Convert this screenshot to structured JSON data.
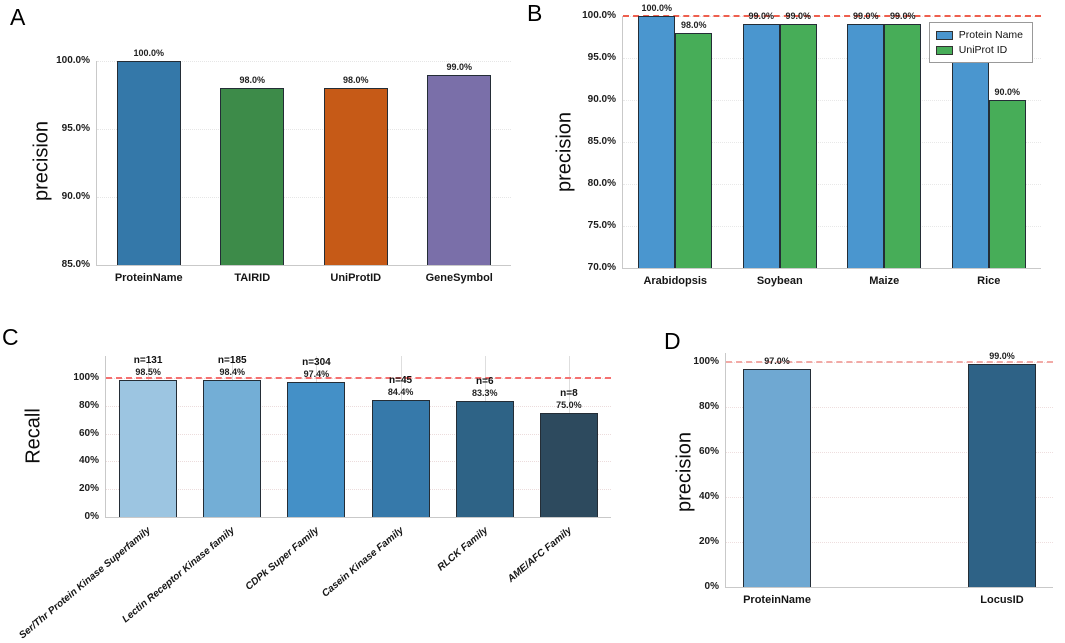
{
  "chart_data": [
    {
      "panel": "A",
      "type": "bar",
      "ylabel": "precision",
      "ylim": [
        85,
        100
      ],
      "ytick_values": [
        85,
        90,
        95,
        100
      ],
      "ytick_labels": [
        "85.0%",
        "90.0%",
        "95.0%",
        "100.0%"
      ],
      "categories": [
        "ProteinName",
        "TAIRID",
        "UniProtID",
        "GeneSymbol"
      ],
      "values": [
        100.0,
        98.0,
        98.0,
        99.0
      ],
      "value_labels": [
        "100.0%",
        "98.0%",
        "98.0%",
        "99.0%"
      ],
      "bar_colors": [
        "#3478a9",
        "#3d8b49",
        "#c65a17",
        "#7a6fa9"
      ],
      "grid": "horizontal-dotted"
    },
    {
      "panel": "B",
      "type": "grouped-bar",
      "ylabel": "precision",
      "ylim": [
        70,
        100
      ],
      "ytick_values": [
        70,
        75,
        80,
        85,
        90,
        95,
        100
      ],
      "ytick_labels": [
        "70.0%",
        "75.0%",
        "80.0%",
        "85.0%",
        "90.0%",
        "95.0%",
        "100.0%"
      ],
      "categories": [
        "Arabidopsis",
        "Soybean",
        "Maize",
        "Rice"
      ],
      "series": [
        {
          "name": "Protein Name",
          "color": "#4a96cf",
          "values": [
            100.0,
            99.0,
            99.0,
            95.0
          ],
          "value_labels": [
            "100.0%",
            "99.0%",
            "99.0%",
            "95.0%"
          ]
        },
        {
          "name": "UniProt ID",
          "color": "#47ad58",
          "values": [
            98.0,
            99.0,
            99.0,
            90.0
          ],
          "value_labels": [
            "98.0%",
            "99.0%",
            "99.0%",
            "90.0%"
          ]
        }
      ],
      "ref_line": {
        "y": 100,
        "color": "#ee5f4e"
      },
      "legend_position": "top-right",
      "grid": "horizontal-dotted"
    },
    {
      "panel": "C",
      "type": "bar",
      "ylabel": "Recall",
      "ylim": [
        0,
        116
      ],
      "ytick_values": [
        0,
        20,
        40,
        60,
        80,
        100
      ],
      "ytick_labels": [
        "0%",
        "20%",
        "40%",
        "60%",
        "80%",
        "100%"
      ],
      "categories": [
        "Ser/Thr Protein Kinase Superfamily",
        "Lectin Receptor Kinase family",
        "CDPk Super Family",
        "Casein Kinase Family",
        "RLCK Family",
        "AME/AFC Family"
      ],
      "values": [
        98.5,
        98.4,
        97.4,
        84.4,
        83.3,
        75.0
      ],
      "value_labels": [
        "98.5%",
        "98.4%",
        "97.4%",
        "84.4%",
        "83.3%",
        "75.0%"
      ],
      "count_labels": [
        "n=131",
        "n=185",
        "n=304",
        "n=45",
        "n=6",
        "n=8"
      ],
      "bar_colors": [
        "#9cc5e1",
        "#73aed6",
        "#4490c7",
        "#3679aa",
        "#2e6386",
        "#2d4a5e"
      ],
      "ref_line": {
        "y": 100,
        "color": "#f47070"
      },
      "grid": "horizontal-dotted-and-vertical"
    },
    {
      "panel": "D",
      "type": "bar",
      "ylabel": "precision",
      "ylim": [
        0,
        104
      ],
      "ytick_values": [
        0,
        20,
        40,
        60,
        80,
        100
      ],
      "ytick_labels": [
        "0%",
        "20%",
        "40%",
        "60%",
        "80%",
        "100%"
      ],
      "categories": [
        "ProteinName",
        "LocusID"
      ],
      "values": [
        97.0,
        99.0
      ],
      "value_labels": [
        "97.0%",
        "99.0%"
      ],
      "bar_colors": [
        "#6fa8d2",
        "#2e6286"
      ],
      "ref_line": {
        "y": 100,
        "color": "#f2aaa6"
      },
      "grid": "horizontal-dotted"
    }
  ]
}
